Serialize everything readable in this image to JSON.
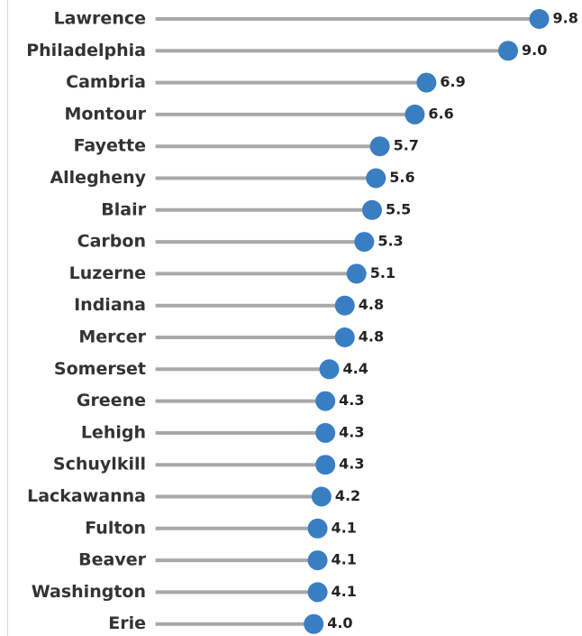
{
  "chart_data": {
    "type": "lollipop",
    "categories": [
      "Lawrence",
      "Philadelphia",
      "Cambria",
      "Montour",
      "Fayette",
      "Allegheny",
      "Blair",
      "Carbon",
      "Luzerne",
      "Indiana",
      "Mercer",
      "Somerset",
      "Greene",
      "Lehigh",
      "Schuylkill",
      "Lackawanna",
      "Fulton",
      "Beaver",
      "Washington",
      "Erie"
    ],
    "values": [
      9.8,
      9.0,
      6.9,
      6.6,
      5.7,
      5.6,
      5.5,
      5.3,
      5.1,
      4.8,
      4.8,
      4.4,
      4.3,
      4.3,
      4.3,
      4.2,
      4.1,
      4.1,
      4.1,
      4.0
    ],
    "value_labels": [
      "9.8",
      "9.0",
      "6.9",
      "6.6",
      "5.7",
      "5.6",
      "5.5",
      "5.3",
      "5.1",
      "4.8",
      "4.8",
      "4.4",
      "4.3",
      "4.3",
      "4.3",
      "4.2",
      "4.1",
      "4.1",
      "4.1",
      "4.0"
    ],
    "color": "#3a7ec2",
    "stem_color": "#a8a8a8",
    "xlim": [
      0,
      10.9
    ]
  }
}
